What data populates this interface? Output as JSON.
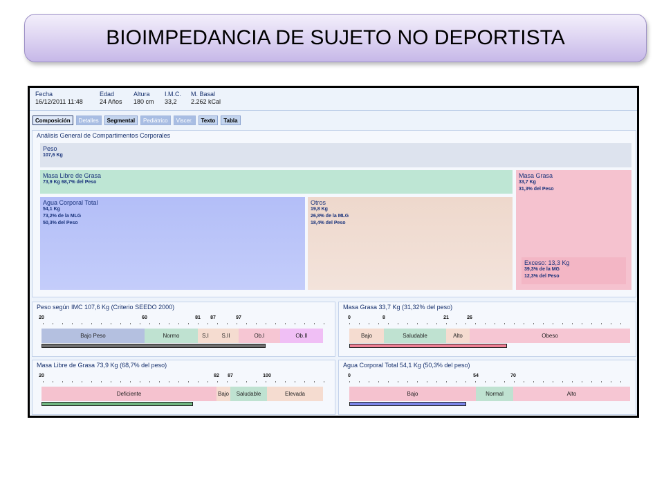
{
  "slide_title": "BIOIMPEDANCIA DE SUJETO NO DEPORTISTA",
  "header": {
    "fecha": {
      "label": "Fecha",
      "value": "16/12/2011 11:48"
    },
    "edad": {
      "label": "Edad",
      "value": "24 Años"
    },
    "altura": {
      "label": "Altura",
      "value": "180 cm"
    },
    "imc": {
      "label": "I.M.C.",
      "value": "33,2"
    },
    "basal": {
      "label": "M. Basal",
      "value": "2.262 kCal"
    }
  },
  "tabs": [
    {
      "label": "Composición",
      "state": "active"
    },
    {
      "label": "Detalles",
      "state": "disabled"
    },
    {
      "label": "Segmental",
      "state": "enabled"
    },
    {
      "label": "Pediátrico",
      "state": "disabled"
    },
    {
      "label": "Viscer.",
      "state": "disabled"
    },
    {
      "label": "Texto",
      "state": "enabled"
    },
    {
      "label": "Tabla",
      "state": "enabled"
    }
  ],
  "analysis": {
    "title": "Análisis General de Compartimentos Corporales",
    "peso": {
      "title": "Peso",
      "lines": [
        "107,6 Kg"
      ]
    },
    "mlg": {
      "title": "Masa Libre de Grasa",
      "lines": [
        "73,9 Kg   68,7% del Peso"
      ]
    },
    "mg": {
      "title": "Masa Grasa",
      "lines": [
        "33,7 Kg",
        "31,3% del Peso"
      ]
    },
    "act": {
      "title": "Agua Corporal Total",
      "lines": [
        "54,1 Kg",
        "73,2% de la MLG",
        "50,3% del Peso"
      ]
    },
    "otros": {
      "title": "Otros",
      "lines": [
        "19,8 Kg",
        "26,8% de la MLG",
        "18,4% del Peso"
      ]
    },
    "exceso": {
      "title": "Exceso: 13,3 Kg",
      "lines": [
        "39,3% de la MG",
        "12,3% del Peso"
      ]
    }
  },
  "gauges": {
    "imc": {
      "title": "Peso según IMC   107,6 Kg   (Criterio SEEDO 2000)",
      "ticks": [
        "20",
        "60",
        "81",
        "87",
        "97"
      ],
      "segments": [
        "Bajo Peso",
        "Normo",
        "S.I",
        "S.II",
        "Ob.I",
        "Ob.II"
      ],
      "value": 107.6,
      "min": 20,
      "max": 130
    },
    "masa_grasa": {
      "title": "Masa Grasa   33,7 Kg   (31,32% del peso)",
      "ticks": [
        "0",
        "8",
        "21",
        "26"
      ],
      "segments": [
        "Bajo",
        "Saludable",
        "Alto",
        "Obeso"
      ],
      "value": 33.7,
      "min": 0,
      "max": 60
    },
    "mlg": {
      "title": "Masa Libre de Grasa   73,9 Kg   (68,7% del peso)",
      "ticks": [
        "20",
        "82",
        "87",
        "100"
      ],
      "segments": [
        "Deficiente",
        "Bajo",
        "Saludable",
        "Elevada"
      ],
      "value": 73.9,
      "min": 20,
      "max": 120
    },
    "act": {
      "title": "Agua Corporal Total   54,1 Kg   (50,3% del peso)",
      "ticks": [
        "0",
        "54",
        "70"
      ],
      "segments": [
        "Bajo",
        "Normal",
        "Alto"
      ],
      "value": 54.1,
      "min": 0,
      "max": 130
    }
  },
  "colors": {
    "peso": "#dde3ee",
    "mlg": "#bee6d4",
    "mg": "#f5c2cf",
    "act": "#b9c4f7",
    "otros": "#f0ddd3",
    "exceso": "#f5bccb",
    "bajo_peso": "#b4c0e0",
    "normo": "#bfe2d1",
    "sobrepeso": "#f5dcd0",
    "ob1": "#f6c6d3",
    "ob2": "#f0bff5",
    "bar_imc": "#6f6f6f",
    "bar_mg": "#ef7f94",
    "bar_mlg": "#72b882",
    "bar_act": "#7c86ea"
  }
}
